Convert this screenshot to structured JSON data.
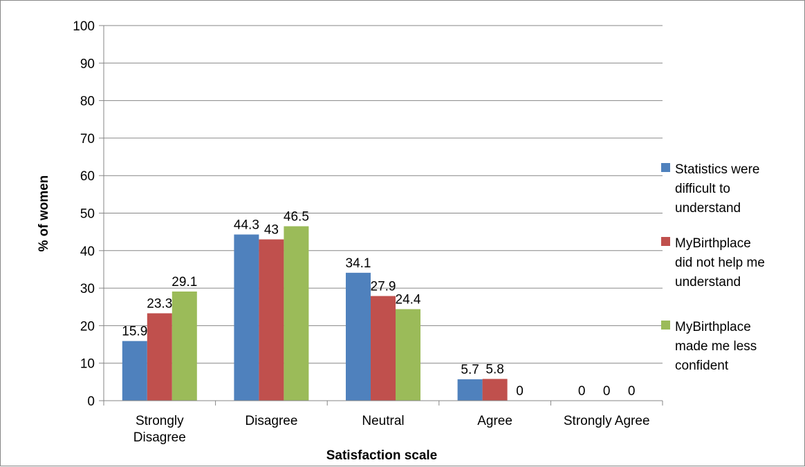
{
  "chart_data": {
    "type": "bar",
    "title": "",
    "xlabel": "Satisfaction scale",
    "ylabel": "% of women",
    "ylim": [
      0,
      100
    ],
    "yticks": [
      0,
      10,
      20,
      30,
      40,
      50,
      60,
      70,
      80,
      90,
      100
    ],
    "grid": true,
    "legend_position": "right",
    "categories": [
      "Strongly Disagree",
      "Disagree",
      "Neutral",
      "Agree",
      "Strongly Agree"
    ],
    "category_lines": [
      [
        "Strongly",
        "Disagree"
      ],
      [
        "Disagree"
      ],
      [
        "Neutral"
      ],
      [
        "Agree"
      ],
      [
        "Strongly Agree"
      ]
    ],
    "series": [
      {
        "name": "Statistics were difficult to understand",
        "legend_lines": [
          "Statistics were",
          "difficult to",
          "understand"
        ],
        "color": "#4F81BD",
        "values": [
          15.9,
          44.3,
          34.1,
          5.7,
          0
        ]
      },
      {
        "name": "MyBirthplace did not help me understand",
        "legend_lines": [
          "MyBirthplace",
          "did not help me",
          "understand"
        ],
        "color": "#C0504D",
        "values": [
          23.3,
          43,
          27.9,
          5.8,
          0
        ]
      },
      {
        "name": "MyBirthplace made me less confident",
        "legend_lines": [
          "MyBirthplace",
          "made me less",
          "confident"
        ],
        "color": "#9BBB59",
        "values": [
          29.1,
          46.5,
          24.4,
          0,
          0
        ]
      }
    ]
  }
}
